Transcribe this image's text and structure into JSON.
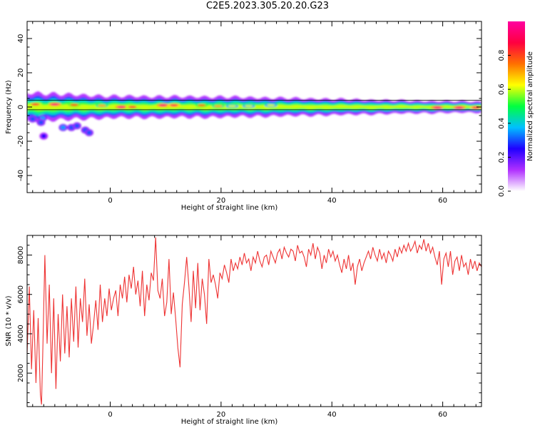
{
  "title": "C2E5.2023.305.20.20.G23",
  "chart_data": [
    {
      "type": "heatmap",
      "xlabel": "Height of straight line (km)",
      "ylabel": "Frequency (Hz)",
      "xlim": [
        -15,
        67
      ],
      "ylim": [
        -50,
        50
      ],
      "xticks": [
        0,
        20,
        40,
        60
      ],
      "yticks": [
        -40,
        -20,
        0,
        20,
        40
      ],
      "colorbar": {
        "label": "Normalized spectral amplitude",
        "range": [
          0.0,
          1.0
        ],
        "ticks": [
          0.0,
          0.2,
          0.4,
          0.6,
          0.8
        ],
        "colors": [
          "#ffffff",
          "#b030ff",
          "#2000ff",
          "#00c0ff",
          "#00ff40",
          "#ffff00",
          "#ff7000",
          "#ff0040",
          "#ff00a0"
        ]
      },
      "ridge": {
        "center_hz": 0,
        "half_width_hz": [
          [
            -15,
            4
          ],
          [
            -8,
            3.5
          ],
          [
            0,
            3
          ],
          [
            20,
            2.8
          ],
          [
            40,
            2.2
          ],
          [
            55,
            1.7
          ],
          [
            67,
            1.5
          ]
        ],
        "peak_amplitude": 0.95
      },
      "hotspots": [
        {
          "x": -13.5,
          "y": 1.5,
          "value": 0.85
        },
        {
          "x": -10,
          "y": 1.5,
          "value": 0.95
        },
        {
          "x": -6.5,
          "y": 1.2,
          "value": 0.8
        },
        {
          "x": -1.5,
          "y": 0.8,
          "value": 0.7
        },
        {
          "x": 2,
          "y": 0,
          "value": 0.95
        },
        {
          "x": 4,
          "y": 0,
          "value": 0.85
        },
        {
          "x": 9.5,
          "y": 1,
          "value": 0.95
        },
        {
          "x": 11.5,
          "y": 1,
          "value": 0.9
        },
        {
          "x": 16.5,
          "y": 1,
          "value": 0.75
        },
        {
          "x": 19.5,
          "y": 0.5,
          "value": 0.7
        },
        {
          "x": 22,
          "y": 0.5,
          "value": 0.6
        },
        {
          "x": 25,
          "y": 0.5,
          "value": 0.6
        },
        {
          "x": 29,
          "y": 1,
          "value": 0.6
        },
        {
          "x": 59,
          "y": -0.3,
          "value": 0.95
        },
        {
          "x": 63,
          "y": -0.3,
          "value": 0.95
        },
        {
          "x": 66,
          "y": -0.3,
          "value": 0.9
        }
      ],
      "scatter_blobs": [
        {
          "x": -14,
          "y": -7,
          "value": 0.3
        },
        {
          "x": -12.2,
          "y": -6.5,
          "value": 0.35
        },
        {
          "x": -12.5,
          "y": -9,
          "value": 0.3
        },
        {
          "x": -12,
          "y": -17,
          "value": 0.25
        },
        {
          "x": -8.5,
          "y": -12,
          "value": 0.35
        },
        {
          "x": -7,
          "y": -12,
          "value": 0.3
        },
        {
          "x": -6,
          "y": -11,
          "value": 0.3
        },
        {
          "x": -4.5,
          "y": -13.5,
          "value": 0.3
        },
        {
          "x": -3.8,
          "y": -15,
          "value": 0.3
        }
      ]
    },
    {
      "type": "line",
      "xlabel": "Height of straight line (km)",
      "ylabel": "SNR (10 * v/v)",
      "xlim": [
        -15,
        67
      ],
      "ylim": [
        300,
        9000
      ],
      "xticks": [
        0,
        20,
        40,
        60
      ],
      "yticks": [
        2000,
        4000,
        6000,
        8000
      ],
      "color": "#ee3333",
      "series": [
        {
          "x": [
            -15,
            -14.6,
            -14.2,
            -13.8,
            -13.4,
            -13.0,
            -12.6,
            -12.4,
            -12.2,
            -11.8,
            -11.4,
            -11.0,
            -10.6,
            -10.2,
            -9.8,
            -9.4,
            -9.0,
            -8.6,
            -8.2,
            -7.8,
            -7.4,
            -7.0,
            -6.6,
            -6.2,
            -5.8,
            -5.4,
            -5.0,
            -4.6,
            -4.2,
            -3.8,
            -3.4,
            -3.0,
            -2.6,
            -2.2,
            -1.8,
            -1.4,
            -1.0,
            -0.6,
            -0.2,
            0.2,
            0.6,
            1.0,
            1.4,
            1.8,
            2.2,
            2.6,
            3.0,
            3.4,
            3.8,
            4.2,
            4.6,
            5.0,
            5.4,
            5.8,
            6.2,
            6.6,
            7.0,
            7.4,
            7.8,
            8.2,
            8.6,
            9.0,
            9.4,
            9.8,
            10.2,
            10.6,
            11.0,
            11.4,
            11.8,
            12.2,
            12.6,
            13.0,
            13.4,
            13.8,
            14.2,
            14.6,
            15.0,
            15.4,
            15.8,
            16.2,
            16.6,
            17.0,
            17.4,
            17.8,
            18.2,
            18.6,
            19.0,
            19.4,
            19.8,
            20.2,
            20.6,
            21.0,
            21.4,
            21.8,
            22.2,
            22.6,
            23.0,
            23.4,
            23.8,
            24.2,
            24.6,
            25.0,
            25.4,
            25.8,
            26.2,
            26.6,
            27.0,
            27.4,
            27.8,
            28.2,
            28.6,
            29.0,
            29.4,
            29.8,
            30.2,
            30.6,
            31.0,
            31.4,
            31.8,
            32.2,
            32.6,
            33.0,
            33.4,
            33.8,
            34.2,
            34.6,
            35.0,
            35.4,
            35.8,
            36.2,
            36.6,
            37.0,
            37.4,
            37.8,
            38.2,
            38.6,
            39.0,
            39.4,
            39.8,
            40.2,
            40.6,
            41.0,
            41.4,
            41.8,
            42.2,
            42.6,
            43.0,
            43.4,
            43.8,
            44.2,
            44.6,
            45.0,
            45.4,
            45.8,
            46.2,
            46.6,
            47.0,
            47.4,
            47.8,
            48.2,
            48.6,
            49.0,
            49.4,
            49.8,
            50.2,
            50.6,
            51.0,
            51.4,
            51.8,
            52.2,
            52.6,
            53.0,
            53.4,
            53.8,
            54.2,
            54.6,
            55.0,
            55.4,
            55.8,
            56.2,
            56.6,
            57.0,
            57.4,
            57.8,
            58.2,
            58.6,
            59.0,
            59.4,
            59.8,
            60.2,
            60.6,
            61.0,
            61.4,
            61.8,
            62.2,
            62.6,
            63.0,
            63.4,
            63.8,
            64.2,
            64.6,
            65.0,
            65.4,
            65.8,
            66.2,
            66.6,
            67.0
          ],
          "y": [
            3000,
            6400,
            2200,
            5200,
            1500,
            4800,
            900,
            400,
            2800,
            8000,
            3500,
            6500,
            2000,
            5800,
            1200,
            5000,
            2600,
            6000,
            3000,
            5400,
            2800,
            5800,
            3600,
            6400,
            3300,
            5800,
            4600,
            6800,
            3900,
            5500,
            3500,
            4500,
            5700,
            4200,
            6500,
            4600,
            5800,
            4900,
            6300,
            5200,
            5800,
            6200,
            4900,
            6500,
            5800,
            6900,
            5600,
            7000,
            6300,
            7400,
            6000,
            6700,
            5400,
            7200,
            4900,
            6500,
            5700,
            7100,
            6700,
            8900,
            6200,
            5800,
            6800,
            4900,
            5600,
            7800,
            5000,
            6100,
            4800,
            3300,
            2300,
            5500,
            6600,
            7900,
            6400,
            4600,
            7200,
            5300,
            7600,
            5200,
            6800,
            6000,
            4500,
            7800,
            6600,
            7000,
            6500,
            5800,
            7100,
            6800,
            7500,
            7100,
            6600,
            7800,
            7200,
            7600,
            7300,
            7900,
            7500,
            8100,
            7600,
            7800,
            7200,
            7900,
            7600,
            8200,
            7700,
            7400,
            7900,
            8000,
            7500,
            8200,
            7900,
            7600,
            8100,
            8300,
            7800,
            8400,
            8100,
            7900,
            8300,
            8200,
            7700,
            8500,
            8100,
            8200,
            7900,
            7400,
            8300,
            8000,
            8600,
            7800,
            8400,
            8100,
            7300,
            8000,
            7600,
            8300,
            7900,
            8200,
            7700,
            8000,
            7500,
            7100,
            7800,
            7300,
            8000,
            7200,
            7600,
            6500,
            7400,
            7800,
            7200,
            7600,
            7900,
            8200,
            7800,
            8400,
            8000,
            7700,
            8300,
            7800,
            8100,
            7600,
            8200,
            8000,
            7700,
            8300,
            7900,
            8400,
            8100,
            8500,
            8200,
            8600,
            8200,
            8400,
            8700,
            8100,
            8500,
            8300,
            8800,
            8200,
            8600,
            8100,
            8400,
            7900,
            7500,
            8200,
            6500,
            7800,
            8100,
            7400,
            8200,
            7000,
            7700,
            7900,
            7200,
            8000,
            7400,
            7600,
            7000,
            7800,
            7300,
            7700,
            7200,
            7600,
            7400
          ]
        }
      ]
    }
  ]
}
